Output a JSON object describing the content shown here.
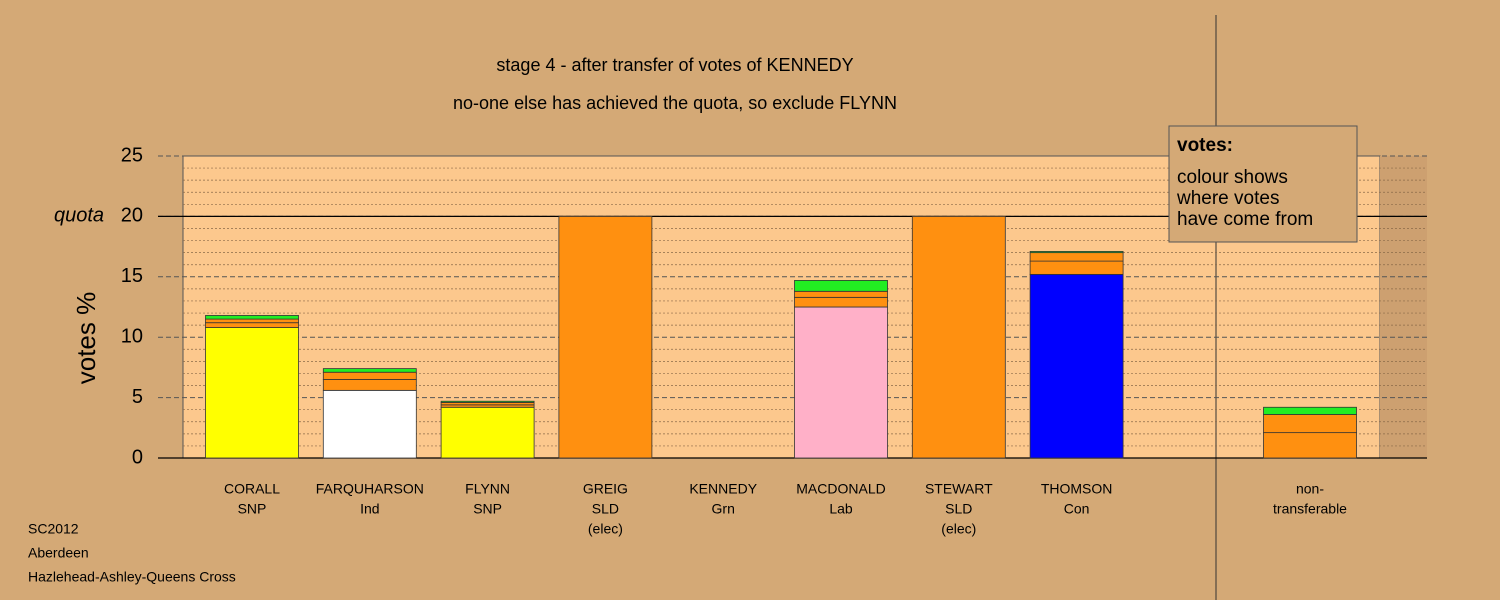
{
  "chart_data": {
    "type": "bar",
    "stacked": true,
    "title": "stage 4 - after transfer of votes of KENNEDY",
    "subtitle": "no-one else has achieved the quota, so exclude FLYNN",
    "y_label": "votes %",
    "quota": 20,
    "quota_label": "quota",
    "categories": [
      [
        "CORALL",
        "SNP"
      ],
      [
        "FARQUHARSON",
        "Ind"
      ],
      [
        "FLYNN",
        "SNP"
      ],
      [
        "GREIG",
        "SLD",
        "(elec)"
      ],
      [
        "KENNEDY",
        "Grn"
      ],
      [
        "MACDONALD",
        "Lab"
      ],
      [
        "STEWART",
        "SLD",
        "(elec)"
      ],
      [
        "THOMSON",
        "Con"
      ],
      [
        "non-",
        "transferable"
      ]
    ],
    "series": [
      {
        "colors": [
          "#ffff00",
          "#ffffff",
          "#ffff00",
          "#ff9010",
          "#22dd22",
          "#ffb0c8",
          "#ff9010",
          "#0000ff",
          "#ff9010"
        ],
        "values": [
          10.8,
          5.6,
          4.2,
          20,
          0,
          12.5,
          20,
          15.2,
          0
        ]
      },
      {
        "color": "#ff9010",
        "values": [
          0.4,
          0.9,
          0.2,
          0,
          0,
          0.8,
          0,
          1.1,
          2.1
        ]
      },
      {
        "color": "#ff9010",
        "values": [
          0.3,
          0.6,
          0.2,
          0,
          0,
          0.5,
          0,
          0.7,
          1.5
        ]
      },
      {
        "color": "#22ee22",
        "values": [
          0.3,
          0.3,
          0.1,
          0,
          0,
          0.9,
          0,
          0.1,
          0.6
        ]
      }
    ],
    "ylim": [
      0,
      25
    ],
    "yticks": [
      0,
      5,
      10,
      15,
      20,
      25
    ],
    "yminor_ticks": [
      1,
      2,
      3,
      4,
      6,
      7,
      8,
      9,
      11,
      12,
      13,
      14,
      16,
      17,
      18,
      19,
      21,
      22,
      23,
      24
    ],
    "grid": true,
    "legend": {
      "title": "votes:",
      "lines": [
        "colour shows",
        "where votes",
        "have come from"
      ]
    },
    "footer": [
      "SC2012",
      "Aberdeen",
      "Hazlehead-Ashley-Queens Cross"
    ]
  }
}
